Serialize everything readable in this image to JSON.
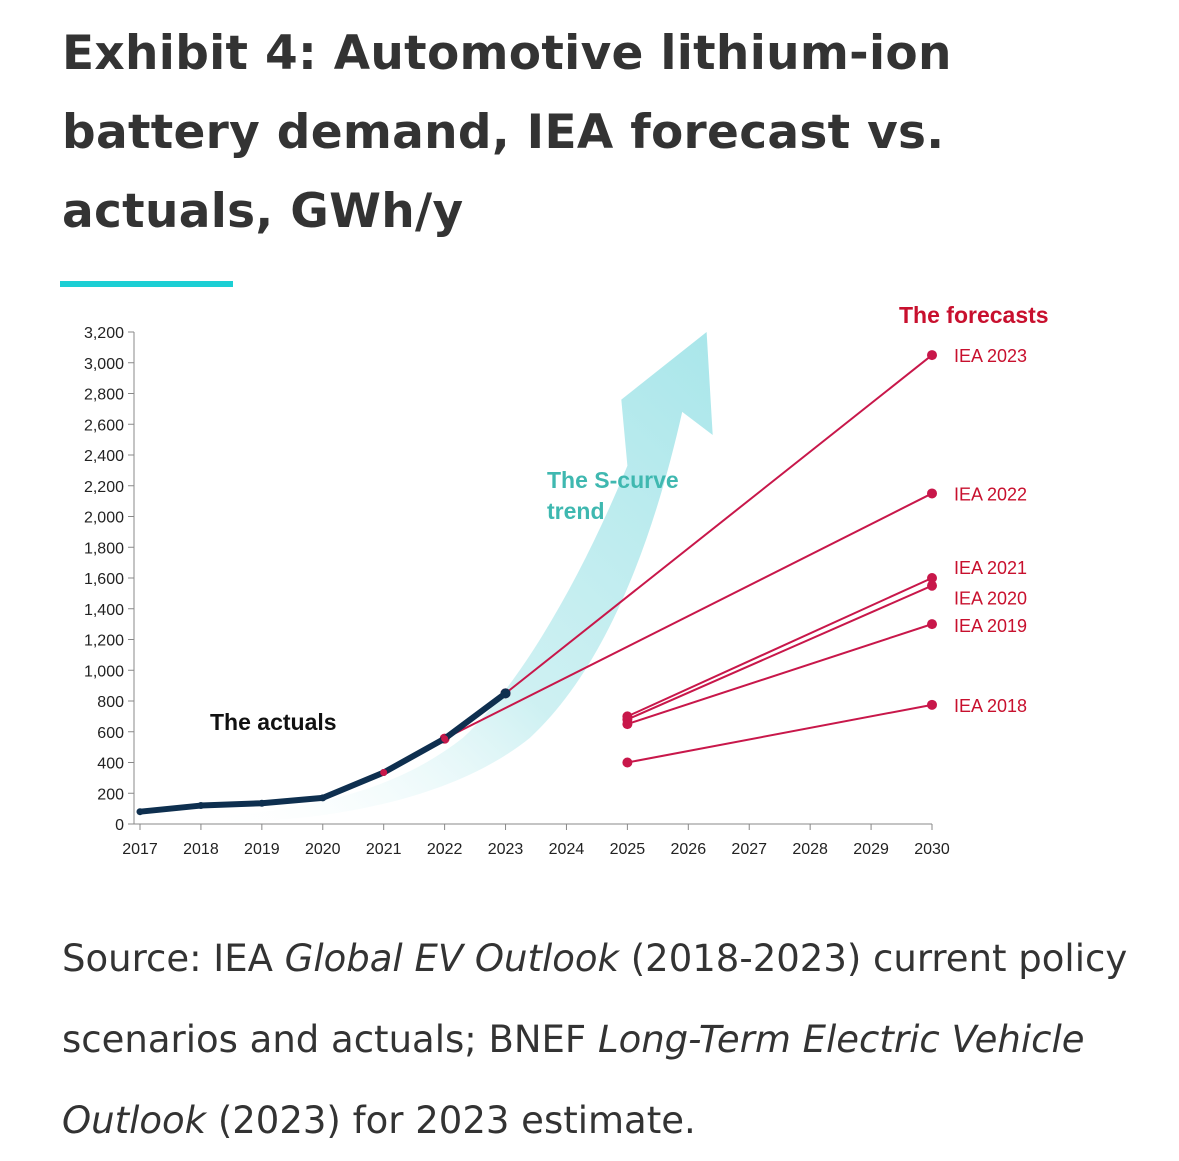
{
  "title": "Exhibit 4: Automotive lithium-ion battery demand, IEA forecast vs. actuals, GWh/y",
  "source": {
    "prefix": "Source: IEA ",
    "publication1": "Global EV Outlook",
    "middle": " (2018-2023) current policy scenarios and actuals; BNEF ",
    "publication2": "Long-Term Electric Vehicle Outlook",
    "suffix": " (2023) for 2023 estimate."
  },
  "colors": {
    "accent": "#1ccfd4",
    "actuals": "#0e2f4f",
    "forecast": "#c8174a",
    "forecast_label": "#c8102e",
    "s_curve": "#a9e6ea",
    "s_curve_label": "#3fb8b0"
  },
  "chart_data": {
    "type": "line",
    "x_ticks": [
      2017,
      2018,
      2019,
      2020,
      2021,
      2022,
      2023,
      2024,
      2025,
      2026,
      2027,
      2028,
      2029,
      2030
    ],
    "y_ticks": [
      "0",
      "200",
      "400",
      "600",
      "800",
      "1,000",
      "1,200",
      "1,400",
      "1,600",
      "1,800",
      "2,000",
      "2,200",
      "2,400",
      "2,600",
      "2,800",
      "3,000",
      "3,200"
    ],
    "ylim": [
      0,
      3200
    ],
    "xlim": [
      2017,
      2030
    ],
    "annotations": {
      "actuals_label": "The actuals",
      "forecasts_header": "The forecasts",
      "s_curve_label_line1": "The S-curve",
      "s_curve_label_line2": "trend"
    },
    "actuals": {
      "x": [
        2017,
        2018,
        2019,
        2020,
        2021,
        2022,
        2023
      ],
      "y": [
        80,
        120,
        135,
        170,
        335,
        555,
        850
      ]
    },
    "series": [
      {
        "name": "IEA 2023",
        "x": [
          2023,
          2030
        ],
        "y": [
          850,
          3050
        ]
      },
      {
        "name": "IEA 2022",
        "x": [
          2022,
          2030
        ],
        "y": [
          555,
          2150
        ]
      },
      {
        "name": "IEA 2021",
        "x": [
          2025,
          2030
        ],
        "y": [
          700,
          1600
        ]
      },
      {
        "name": "IEA 2020",
        "x": [
          2025,
          2030
        ],
        "y": [
          680,
          1550
        ]
      },
      {
        "name": "IEA 2019",
        "x": [
          2025,
          2030
        ],
        "y": [
          650,
          1300
        ]
      },
      {
        "name": "IEA 2018",
        "x": [
          2025,
          2030
        ],
        "y": [
          400,
          775
        ]
      }
    ]
  }
}
